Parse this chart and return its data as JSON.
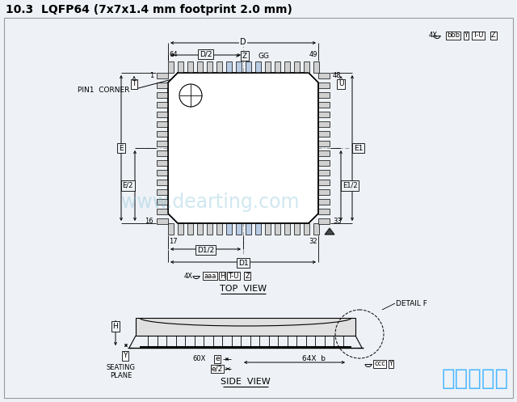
{
  "title": "10.3  LQFP64 (7x7x1.4 mm footprint 2.0 mm)",
  "bg_color": "#eef2f7",
  "border_color": "#aaaaaa",
  "line_color": "#000000",
  "dim_color": "#000000",
  "watermark_color": "#7bbdd4",
  "watermark_text": "www.dearting.com",
  "brand_text": "深圳宏力捐",
  "brand_color": "#4db8ff",
  "top_view_label": "TOP  VIEW",
  "side_view_label": "SIDE  VIEW",
  "detail_f_label": "DETAIL F",
  "seating_plane_label": "SEATING\nPLANE",
  "pin1_corner_label": "PIN1  CORNER"
}
